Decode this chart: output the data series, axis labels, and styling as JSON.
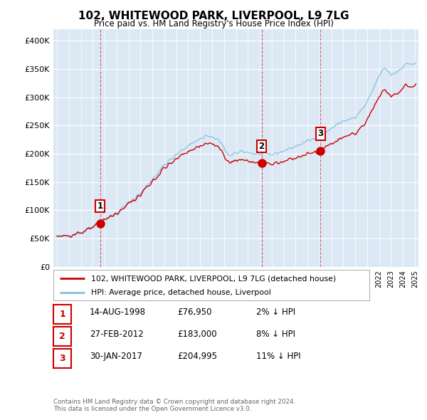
{
  "title": "102, WHITEWOOD PARK, LIVERPOOL, L9 7LG",
  "subtitle": "Price paid vs. HM Land Registry's House Price Index (HPI)",
  "ylim": [
    0,
    420000
  ],
  "yticks": [
    0,
    50000,
    100000,
    150000,
    200000,
    250000,
    300000,
    350000,
    400000
  ],
  "ytick_labels": [
    "£0",
    "£50K",
    "£100K",
    "£150K",
    "£200K",
    "£250K",
    "£300K",
    "£350K",
    "£400K"
  ],
  "hpi_color": "#89bfdf",
  "price_color": "#cc0000",
  "sale_marker_color": "#cc0000",
  "sale_dates": [
    1998.62,
    2012.15,
    2017.08
  ],
  "sale_prices": [
    76950,
    183000,
    204995
  ],
  "sale_labels": [
    "1",
    "2",
    "3"
  ],
  "vline_dates": [
    1998.62,
    2012.15,
    2017.08
  ],
  "legend_label_price": "102, WHITEWOOD PARK, LIVERPOOL, L9 7LG (detached house)",
  "legend_label_hpi": "HPI: Average price, detached house, Liverpool",
  "table_data": [
    [
      "1",
      "14-AUG-1998",
      "£76,950",
      "2% ↓ HPI"
    ],
    [
      "2",
      "27-FEB-2012",
      "£183,000",
      "8% ↓ HPI"
    ],
    [
      "3",
      "30-JAN-2017",
      "£204,995",
      "11% ↓ HPI"
    ]
  ],
  "footnote": "Contains HM Land Registry data © Crown copyright and database right 2024.\nThis data is licensed under the Open Government Licence v3.0.",
  "bg_color": "#ffffff",
  "plot_bg_color": "#dce9f5"
}
